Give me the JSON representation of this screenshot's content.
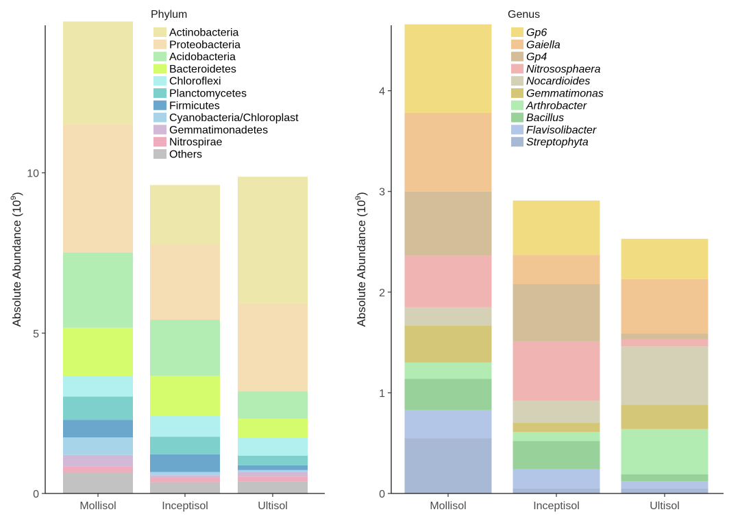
{
  "chart_data": [
    {
      "type": "bar",
      "stacked": true,
      "title": "",
      "legend_title": "Phylum",
      "legend_position": "top-right-inside",
      "xlabel": "",
      "ylabel": "Absolute Abundance (10",
      "ylabel_sup": "9",
      "ylabel_close": ")",
      "ylim": [
        0,
        14.6
      ],
      "yticks": [
        0,
        5,
        10
      ],
      "categories": [
        "Mollisol",
        "Inceptisol",
        "Ultisol"
      ],
      "series": [
        {
          "name": "Others",
          "color": "#c2c2c2",
          "values": [
            0.65,
            0.35,
            0.38
          ]
        },
        {
          "name": "Nitrospirae",
          "color": "#eeacbc",
          "values": [
            0.2,
            0.14,
            0.15
          ]
        },
        {
          "name": "Gemmatimonadetes",
          "color": "#d3b9d8",
          "values": [
            0.35,
            0.08,
            0.15
          ]
        },
        {
          "name": "Cyanobacteria/Chloroplast",
          "color": "#a8d4ea",
          "values": [
            0.55,
            0.1,
            0.05
          ]
        },
        {
          "name": "Firmicutes",
          "color": "#6ba6cd",
          "values": [
            0.55,
            0.55,
            0.15
          ]
        },
        {
          "name": "Planctomycetes",
          "color": "#7dd0cc",
          "values": [
            0.72,
            0.55,
            0.3
          ]
        },
        {
          "name": "Chloroflexi",
          "color": "#b2efef",
          "values": [
            0.65,
            0.65,
            0.55
          ]
        },
        {
          "name": "Bacteroidetes",
          "color": "#d4fc6c",
          "values": [
            1.5,
            1.25,
            0.6
          ]
        },
        {
          "name": "Acidobacteria",
          "color": "#b4edb4",
          "values": [
            2.35,
            1.75,
            0.85
          ]
        },
        {
          "name": "Proteobacteria",
          "color": "#f5deb4",
          "values": [
            4.0,
            2.35,
            2.75
          ]
        },
        {
          "name": "Actinobacteria",
          "color": "#ede7ab",
          "values": [
            3.2,
            1.85,
            3.95
          ]
        }
      ]
    },
    {
      "type": "bar",
      "stacked": true,
      "title": "",
      "legend_title": "Genus",
      "legend_position": "top-right-inside",
      "xlabel": "",
      "ylabel": "Absolute Abundance (10",
      "ylabel_sup": "9",
      "ylabel_close": ")",
      "ylim": [
        0,
        4.65
      ],
      "yticks": [
        0,
        1,
        2,
        3,
        4
      ],
      "categories": [
        "Mollisol",
        "Inceptisol",
        "Ultisol"
      ],
      "series": [
        {
          "name": "Streptophyta",
          "color": "#a8b9d6",
          "values": [
            0.55,
            0.05,
            0.05
          ]
        },
        {
          "name": "Flavisolibacter",
          "color": "#b3c6e8",
          "values": [
            0.28,
            0.19,
            0.07
          ]
        },
        {
          "name": "Bacillus",
          "color": "#99d19a",
          "values": [
            0.31,
            0.28,
            0.07
          ]
        },
        {
          "name": "Arthrobacter",
          "color": "#b3ecb3",
          "values": [
            0.16,
            0.09,
            0.45
          ]
        },
        {
          "name": "Gemmatimonas",
          "color": "#d4c878",
          "values": [
            0.37,
            0.09,
            0.24
          ]
        },
        {
          "name": "Nocardioides",
          "color": "#d4d1b6",
          "values": [
            0.18,
            0.22,
            0.58
          ]
        },
        {
          "name": "Nitrososphaera",
          "color": "#f0b4b2",
          "values": [
            0.51,
            0.59,
            0.07
          ]
        },
        {
          "name": "Gp4",
          "color": "#d4bd99",
          "values": [
            0.64,
            0.57,
            0.06
          ]
        },
        {
          "name": "Gaiella",
          "color": "#f1c693",
          "values": [
            0.78,
            0.29,
            0.54
          ]
        },
        {
          "name": "Gp6",
          "color": "#f2dc82",
          "values": [
            0.88,
            0.54,
            0.4
          ]
        }
      ]
    }
  ]
}
